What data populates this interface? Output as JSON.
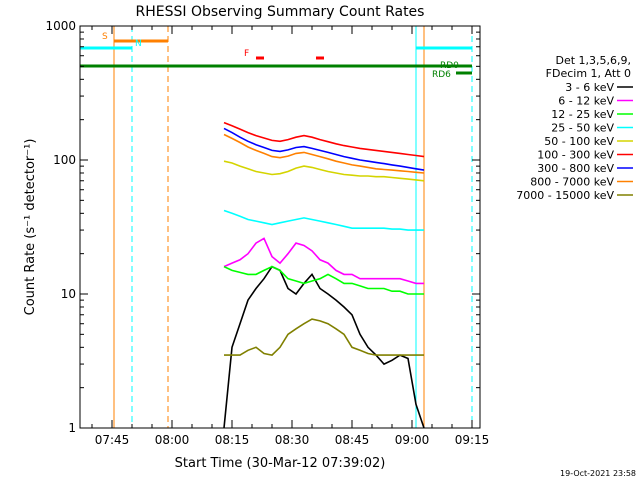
{
  "chart_data": {
    "type": "line",
    "title": "RHESSI Observing Summary Count Rates",
    "xlabel": "Start Time (30-Mar-12 07:39:02)",
    "ylabel": "Count Rate (s⁻¹ detector⁻¹)",
    "ylog": true,
    "ylim": [
      1,
      1000
    ],
    "xlim_min": [
      -2,
      98
    ],
    "xticks": [
      {
        "min": 6,
        "label": "07:45"
      },
      {
        "min": 21,
        "label": "08:00"
      },
      {
        "min": 36,
        "label": "08:15"
      },
      {
        "min": 51,
        "label": "08:30"
      },
      {
        "min": 66,
        "label": "08:45"
      },
      {
        "min": 81,
        "label": "09:00"
      },
      {
        "min": 96,
        "label": "09:15"
      }
    ],
    "yticks": [
      {
        "value": 1,
        "label": "1"
      },
      {
        "value": 10,
        "label": "10"
      },
      {
        "value": 100,
        "label": "100"
      },
      {
        "value": 1000,
        "label": "1000"
      }
    ],
    "legend_header": [
      "Det 1,3,5,6,9,",
      "FDecim 1, Att 0"
    ],
    "series": [
      {
        "name": "3 - 6 keV",
        "color": "#000000",
        "x": [
          34,
          36,
          38,
          40,
          42,
          44,
          46,
          48,
          50,
          52,
          54,
          56,
          58,
          60,
          62,
          64,
          66,
          68,
          70,
          72,
          74,
          76,
          78,
          80,
          82,
          84
        ],
        "y": [
          1,
          4,
          6,
          9,
          11,
          13,
          16,
          15,
          11,
          10,
          12,
          14,
          11,
          10,
          9,
          8,
          7,
          5,
          4,
          3.5,
          3,
          3.2,
          3.5,
          3.3,
          1.5,
          1
        ]
      },
      {
        "name": "6 - 12 keV",
        "color": "#ff00ff",
        "x": [
          34,
          36,
          38,
          40,
          42,
          44,
          46,
          48,
          50,
          52,
          54,
          56,
          58,
          60,
          62,
          64,
          66,
          68,
          70,
          72,
          74,
          76,
          78,
          80,
          82,
          84
        ],
        "y": [
          16,
          17,
          18,
          20,
          24,
          26,
          19,
          17,
          20,
          24,
          23,
          21,
          18,
          17,
          15,
          14,
          14,
          13,
          13,
          13,
          13,
          13,
          13,
          12.5,
          12,
          12
        ]
      },
      {
        "name": "12 - 25 keV",
        "color": "#00ff00",
        "x": [
          34,
          36,
          38,
          40,
          42,
          44,
          46,
          48,
          50,
          52,
          54,
          56,
          58,
          60,
          62,
          64,
          66,
          68,
          70,
          72,
          74,
          76,
          78,
          80,
          82,
          84
        ],
        "y": [
          16,
          15,
          14.5,
          14,
          14,
          15,
          16,
          15,
          13,
          12.5,
          12,
          12.5,
          13,
          14,
          13,
          12,
          12,
          11.5,
          11,
          11,
          11,
          10.5,
          10.5,
          10,
          10,
          10
        ]
      },
      {
        "name": "25 - 50 keV",
        "color": "#00ffff",
        "x": [
          34,
          36,
          38,
          40,
          42,
          44,
          46,
          48,
          50,
          52,
          54,
          56,
          58,
          60,
          62,
          64,
          66,
          68,
          70,
          72,
          74,
          76,
          78,
          80,
          82,
          84
        ],
        "y": [
          42,
          40,
          38,
          36,
          35,
          34,
          33,
          34,
          35,
          36,
          37,
          36,
          35,
          34,
          33,
          32,
          31,
          31,
          31,
          31,
          31,
          30.5,
          30.5,
          30,
          30,
          30
        ]
      },
      {
        "name": "50 - 100 keV",
        "color": "#d4d400",
        "x": [
          34,
          36,
          38,
          40,
          42,
          44,
          46,
          48,
          50,
          52,
          54,
          56,
          58,
          60,
          62,
          64,
          66,
          68,
          70,
          72,
          74,
          76,
          78,
          80,
          82,
          84
        ],
        "y": [
          98,
          95,
          90,
          86,
          82,
          80,
          78,
          79,
          82,
          87,
          90,
          88,
          85,
          82,
          80,
          78,
          77,
          76,
          76,
          75,
          75,
          74,
          73,
          72,
          71,
          70
        ]
      },
      {
        "name": "100 - 300 keV",
        "color": "#ff0000",
        "x": [
          34,
          36,
          38,
          40,
          42,
          44,
          46,
          48,
          50,
          52,
          54,
          56,
          58,
          60,
          62,
          64,
          66,
          68,
          70,
          72,
          74,
          76,
          78,
          80,
          82,
          84
        ],
        "y": [
          190,
          180,
          170,
          160,
          152,
          146,
          140,
          138,
          142,
          148,
          152,
          148,
          142,
          137,
          132,
          128,
          125,
          122,
          120,
          118,
          116,
          114,
          112,
          110,
          108,
          106
        ]
      },
      {
        "name": "300 - 800 keV",
        "color": "#0000ff",
        "x": [
          34,
          36,
          38,
          40,
          42,
          44,
          46,
          48,
          50,
          52,
          54,
          56,
          58,
          60,
          62,
          64,
          66,
          68,
          70,
          72,
          74,
          76,
          78,
          80,
          82,
          84
        ],
        "y": [
          172,
          160,
          148,
          138,
          130,
          124,
          118,
          116,
          119,
          124,
          126,
          122,
          118,
          114,
          110,
          106,
          103,
          100,
          98,
          96,
          94,
          92,
          90,
          88,
          86,
          84
        ]
      },
      {
        "name": "800 - 7000 keV",
        "color": "#ff8000",
        "x": [
          34,
          36,
          38,
          40,
          42,
          44,
          46,
          48,
          50,
          52,
          54,
          56,
          58,
          60,
          62,
          64,
          66,
          68,
          70,
          72,
          74,
          76,
          78,
          80,
          82,
          84
        ],
        "y": [
          155,
          145,
          135,
          125,
          118,
          112,
          106,
          104,
          107,
          112,
          114,
          110,
          106,
          102,
          98,
          95,
          92,
          90,
          88,
          86,
          85,
          84,
          83,
          82,
          81,
          80
        ]
      },
      {
        "name": "7000 - 15000 keV",
        "color": "#808000",
        "x": [
          34,
          36,
          38,
          40,
          42,
          44,
          46,
          48,
          50,
          52,
          54,
          56,
          58,
          60,
          62,
          64,
          66,
          68,
          70,
          72,
          74,
          76,
          78,
          80,
          82,
          84
        ],
        "y": [
          3.5,
          3.5,
          3.5,
          3.8,
          4,
          3.6,
          3.5,
          4,
          5,
          5.5,
          6,
          6.5,
          6.3,
          6,
          5.5,
          5,
          4,
          3.8,
          3.6,
          3.5,
          3.5,
          3.5,
          3.5,
          3.5,
          3.5,
          3.5
        ]
      }
    ],
    "state_bars": [
      {
        "label": "S",
        "color": "#ff8000",
        "x_min": [
          6.5,
          20
        ]
      },
      {
        "label": "N",
        "color": "#00ffff",
        "x_min": [
          -2,
          11
        ]
      },
      {
        "label": "N",
        "color": "#00ffff",
        "x_min": [
          82,
          96
        ]
      },
      {
        "label": "F",
        "color": "#ff0000",
        "x_min": [
          42,
          44
        ]
      },
      {
        "label": "F",
        "color": "#ff0000",
        "x_min": [
          57,
          59
        ]
      },
      {
        "label": "RD0",
        "color": "#008000",
        "x_min": [
          -2,
          96
        ]
      },
      {
        "label": "RD6",
        "color": "#008000",
        "x_min": [
          92,
          96
        ]
      }
    ],
    "vertical_lines": [
      {
        "x_min": 6.5,
        "color": "#ff8000",
        "style": "solid"
      },
      {
        "x_min": 11,
        "color": "#00ffff",
        "style": "dashed"
      },
      {
        "x_min": 20,
        "color": "#ff8000",
        "style": "dashed"
      },
      {
        "x_min": 82,
        "color": "#00ffff",
        "style": "solid"
      },
      {
        "x_min": 84,
        "color": "#ff8000",
        "style": "solid"
      },
      {
        "x_min": 96,
        "color": "#00ffff",
        "style": "dashed"
      }
    ]
  },
  "footer": {
    "date": "19-Oct-2021 23:58"
  }
}
